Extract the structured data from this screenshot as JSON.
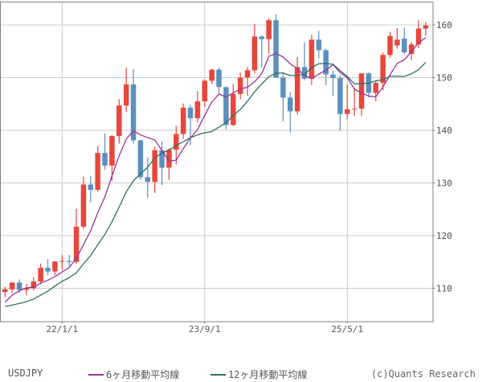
{
  "chart_data": {
    "type": "candlestick",
    "symbol": "USDJPY",
    "frequency": "monthly",
    "start_month": "2021-05",
    "ohlc_fields": [
      "open",
      "high",
      "low",
      "close"
    ],
    "ohlc": [
      [
        109.3,
        110.3,
        108.3,
        109.8
      ],
      [
        109.8,
        111.1,
        109.2,
        111.1
      ],
      [
        111.1,
        111.7,
        109.1,
        109.7
      ],
      [
        109.7,
        110.8,
        108.7,
        110.0
      ],
      [
        110.0,
        112.1,
        109.6,
        111.3
      ],
      [
        111.3,
        114.7,
        110.8,
        113.9
      ],
      [
        113.9,
        115.5,
        112.5,
        113.2
      ],
      [
        113.2,
        115.1,
        112.5,
        115.1
      ],
      [
        115.1,
        116.3,
        113.5,
        115.2
      ],
      [
        115.2,
        116.3,
        114.2,
        115.0
      ],
      [
        115.0,
        125.1,
        114.6,
        121.7
      ],
      [
        121.7,
        131.2,
        121.3,
        129.7
      ],
      [
        129.7,
        131.3,
        126.4,
        128.7
      ],
      [
        128.7,
        137.0,
        128.3,
        135.7
      ],
      [
        135.7,
        139.4,
        132.5,
        133.3
      ],
      [
        133.3,
        139.1,
        130.4,
        138.9
      ],
      [
        138.9,
        145.9,
        137.5,
        144.7
      ],
      [
        144.7,
        151.9,
        143.5,
        148.7
      ],
      [
        148.7,
        151.6,
        137.5,
        138.1
      ],
      [
        138.1,
        138.2,
        130.6,
        131.1
      ],
      [
        131.1,
        134.8,
        127.2,
        130.2
      ],
      [
        130.2,
        136.9,
        128.1,
        136.2
      ],
      [
        136.2,
        137.9,
        129.6,
        132.9
      ],
      [
        132.9,
        136.6,
        130.6,
        136.3
      ],
      [
        136.3,
        140.9,
        133.5,
        139.3
      ],
      [
        139.3,
        145.1,
        138.4,
        144.3
      ],
      [
        144.3,
        144.9,
        137.2,
        142.3
      ],
      [
        142.3,
        147.4,
        141.5,
        145.5
      ],
      [
        145.5,
        149.7,
        144.4,
        149.4
      ],
      [
        149.4,
        151.7,
        148.8,
        151.5
      ],
      [
        151.5,
        151.9,
        146.7,
        148.2
      ],
      [
        148.2,
        148.3,
        140.2,
        141.0
      ],
      [
        141.0,
        148.8,
        140.8,
        146.9
      ],
      [
        146.9,
        150.9,
        145.9,
        150.0
      ],
      [
        150.0,
        152.0,
        146.5,
        151.4
      ],
      [
        151.4,
        160.2,
        150.8,
        157.8
      ],
      [
        157.8,
        158.0,
        151.9,
        157.3
      ],
      [
        157.3,
        161.3,
        154.5,
        160.9
      ],
      [
        160.9,
        162.0,
        151.8,
        150.0
      ],
      [
        150.0,
        150.9,
        141.7,
        146.2
      ],
      [
        146.2,
        147.2,
        139.6,
        143.6
      ],
      [
        143.6,
        153.9,
        143.0,
        152.0
      ],
      [
        152.0,
        156.7,
        149.5,
        149.8
      ],
      [
        149.8,
        158.1,
        148.6,
        157.2
      ],
      [
        157.2,
        158.9,
        153.7,
        155.2
      ],
      [
        155.2,
        155.5,
        148.6,
        150.6
      ],
      [
        150.6,
        151.3,
        146.5,
        149.9
      ],
      [
        149.9,
        150.5,
        139.9,
        143.1
      ],
      [
        143.1,
        148.7,
        142.1,
        144.0
      ],
      [
        144.0,
        148.0,
        142.7,
        144.1
      ],
      [
        144.1,
        150.9,
        142.7,
        150.8
      ],
      [
        150.8,
        151.0,
        146.2,
        147.1
      ],
      [
        147.1,
        149.4,
        145.5,
        149.0
      ],
      [
        149.0,
        154.8,
        147.6,
        154.3
      ],
      [
        154.3,
        158.7,
        153.8,
        157.9
      ],
      [
        156.1,
        159.4,
        155.5,
        157.2
      ],
      [
        157.4,
        159.5,
        154.5,
        154.8
      ],
      [
        154.5,
        156.8,
        153.3,
        156.3
      ],
      [
        156.3,
        160.9,
        155.6,
        159.3
      ],
      [
        159.3,
        160.6,
        157.9,
        159.9
      ]
    ],
    "pre_closes": [
      107.8,
      107.9,
      105.9,
      105.9,
      105.5,
      104.7,
      104.3,
      103.2,
      104.7,
      106.6,
      110.7,
      109.3
    ],
    "overlays": [
      {
        "name": "6ヶ月移動平均線",
        "window": 6,
        "color": "#993399"
      },
      {
        "name": "12ヶ月移動平均線",
        "window": 12,
        "color": "#2e6f63"
      }
    ],
    "y_ticks": [
      160,
      150,
      140,
      130,
      120,
      110
    ],
    "x_ticks": [
      {
        "label": "22/1/1",
        "index": 8
      },
      {
        "label": "23/9/1",
        "index": 28
      },
      {
        "label": "25/5/1",
        "index": 48
      }
    ],
    "ylim": [
      103.8,
      164.3
    ],
    "grid": true,
    "legend_position": "bottom",
    "up_color": "#e8463c",
    "down_color": "#5b8fbe",
    "grid_color": "#cccccc",
    "border_color": "#808080",
    "axis_text_color": "#4a4a4a"
  },
  "legend": {
    "series": "USDJPY",
    "ma6": "6ヶ月移動平均線",
    "ma12": "12ヶ月移動平均線"
  },
  "footer": {
    "copyright": "(c)Quants Research"
  }
}
